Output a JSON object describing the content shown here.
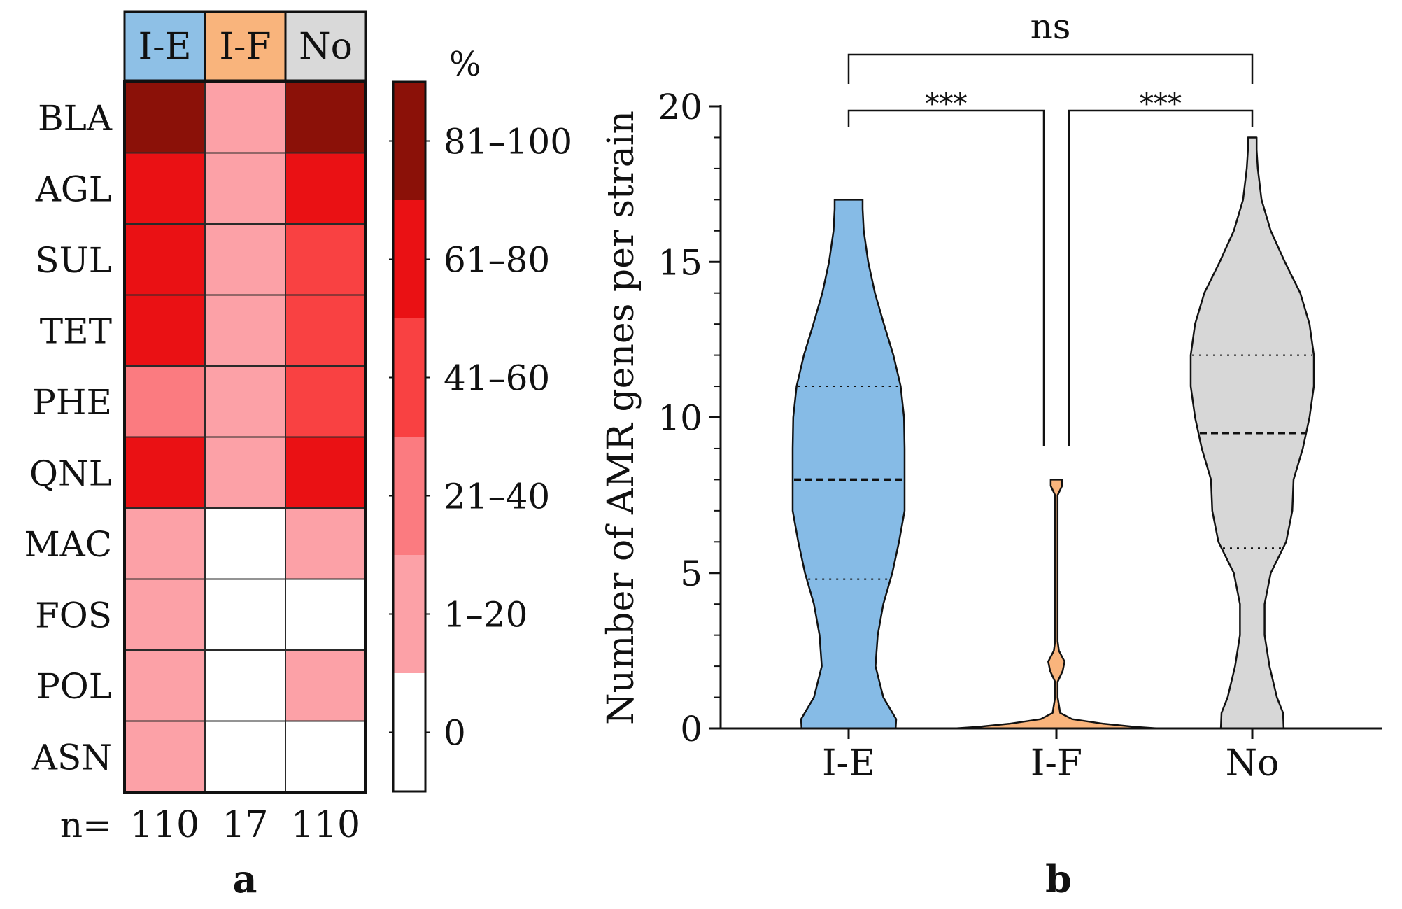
{
  "chart_data": [
    {
      "type": "heatmap",
      "panel_label": "a",
      "columns": [
        "I-E",
        "I-F",
        "No"
      ],
      "column_colors": [
        "#8ec0e6",
        "#f9b47c",
        "#d9d9d9"
      ],
      "rows": [
        "BLA",
        "AGL",
        "SUL",
        "TET",
        "PHE",
        "QNL",
        "MAC",
        "FOS",
        "POL",
        "ASN"
      ],
      "category_matrix": [
        [
          5,
          1,
          5
        ],
        [
          4,
          1,
          4
        ],
        [
          4,
          1,
          3
        ],
        [
          4,
          1,
          3
        ],
        [
          2,
          1,
          3
        ],
        [
          4,
          1,
          4
        ],
        [
          1,
          0,
          1
        ],
        [
          1,
          0,
          0
        ],
        [
          1,
          0,
          1
        ],
        [
          1,
          0,
          0
        ]
      ],
      "legend_title": "%",
      "legend_labels": [
        "0",
        "1–20",
        "21–40",
        "41–60",
        "61–80",
        "81–100"
      ],
      "legend_colors": [
        "#ffffff",
        "#fca1a7",
        "#fb7b80",
        "#f94142",
        "#ea1114",
        "#8b1108"
      ],
      "n_label": "n=",
      "n_values": [
        "110",
        "17",
        "110"
      ]
    },
    {
      "type": "violin",
      "panel_label": "b",
      "ylabel": "Number of AMR genes per strain",
      "ylim": [
        0,
        20
      ],
      "yticks": [
        0,
        5,
        10,
        15,
        20
      ],
      "categories": [
        "I-E",
        "I-F",
        "No"
      ],
      "colors": [
        "#86bbe6",
        "#f9b47c",
        "#d7d7d7"
      ],
      "series": [
        {
          "name": "I-E",
          "median": 8,
          "q1": 4.8,
          "q3": 11,
          "density_y": [
            0,
            0.3,
            1,
            2,
            3,
            4,
            5,
            6,
            7,
            8,
            9,
            10,
            11,
            12,
            13,
            14,
            15,
            16,
            16.7,
            17
          ],
          "density_w": [
            0.84,
            0.85,
            0.62,
            0.48,
            0.52,
            0.62,
            0.78,
            0.9,
            1.0,
            1.0,
            1.0,
            0.99,
            0.93,
            0.8,
            0.63,
            0.47,
            0.35,
            0.27,
            0.25,
            0.25
          ]
        },
        {
          "name": "I-F",
          "median": 0,
          "q1": 0,
          "q3": 0,
          "density_y": [
            0,
            0.05,
            0.15,
            0.3,
            0.5,
            1.0,
            1.5,
            1.85,
            2.15,
            2.5,
            2.8,
            3.2,
            4,
            5,
            6,
            7,
            7.5,
            7.8,
            8
          ],
          "density_w": [
            1.3,
            1.0,
            0.6,
            0.2,
            0.06,
            0.02,
            0.02,
            0.1,
            0.13,
            0.04,
            0.02,
            0.02,
            0.02,
            0.02,
            0.02,
            0.02,
            0.02,
            0.09,
            0.09
          ]
        },
        {
          "name": "No",
          "median": 9.5,
          "q1": 5.8,
          "q3": 12,
          "density_y": [
            0,
            0.5,
            1,
            2,
            3,
            4,
            5,
            6,
            7,
            8,
            9,
            10,
            11,
            12,
            13,
            14,
            15,
            16,
            17,
            18,
            18.6,
            19
          ],
          "density_w": [
            0.51,
            0.5,
            0.4,
            0.28,
            0.2,
            0.2,
            0.3,
            0.55,
            0.65,
            0.67,
            0.82,
            0.93,
            1.0,
            1.0,
            0.93,
            0.78,
            0.53,
            0.3,
            0.15,
            0.09,
            0.07,
            0.07
          ]
        }
      ],
      "significance": [
        {
          "pair": [
            "I-E",
            "No"
          ],
          "label": "ns"
        },
        {
          "pair": [
            "I-E",
            "I-F"
          ],
          "label": "***"
        },
        {
          "pair": [
            "I-F",
            "No"
          ],
          "label": "***"
        }
      ]
    }
  ]
}
